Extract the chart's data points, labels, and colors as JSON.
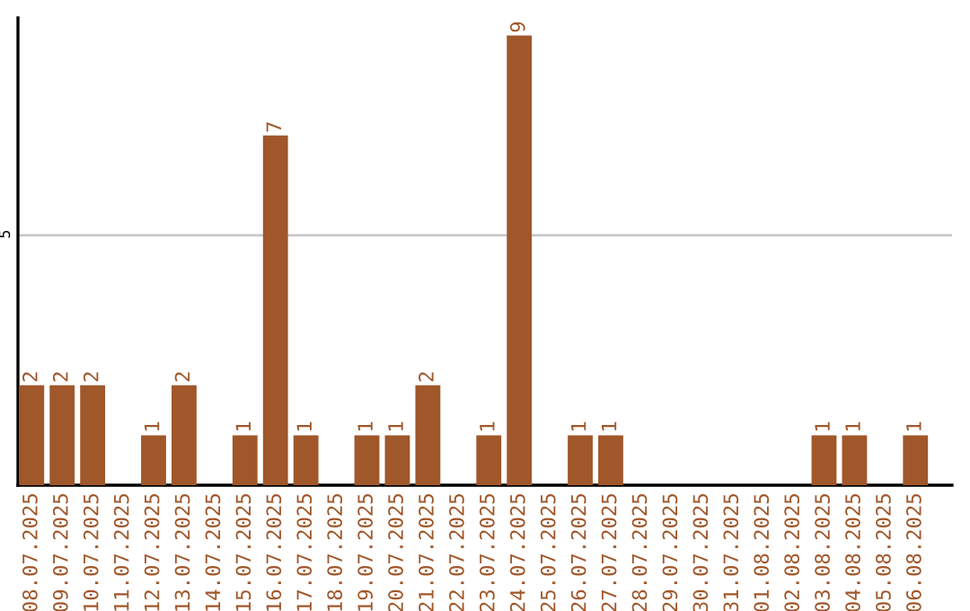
{
  "chart_data": {
    "type": "bar",
    "categories": [
      "08.07.2025",
      "09.07.2025",
      "10.07.2025",
      "11.07.2025",
      "12.07.2025",
      "13.07.2025",
      "14.07.2025",
      "15.07.2025",
      "16.07.2025",
      "17.07.2025",
      "18.07.2025",
      "19.07.2025",
      "20.07.2025",
      "21.07.2025",
      "22.07.2025",
      "23.07.2025",
      "24.07.2025",
      "25.07.2025",
      "26.07.2025",
      "27.07.2025",
      "28.07.2025",
      "29.07.2025",
      "30.07.2025",
      "31.07.2025",
      "01.08.2025",
      "02.08.2025",
      "03.08.2025",
      "04.08.2025",
      "05.08.2025",
      "06.08.2025"
    ],
    "values": [
      2,
      2,
      2,
      0,
      1,
      2,
      0,
      1,
      7,
      1,
      0,
      1,
      1,
      2,
      0,
      1,
      9,
      0,
      1,
      1,
      0,
      0,
      0,
      0,
      0,
      0,
      1,
      1,
      0,
      1
    ],
    "value_labels": [
      "2",
      "2",
      "2",
      null,
      "1",
      "2",
      null,
      "1",
      "7",
      "1",
      null,
      "1",
      "1",
      "2",
      null,
      "1",
      "9",
      null,
      "1",
      "1",
      null,
      null,
      null,
      null,
      null,
      null,
      "1",
      "1",
      null,
      "1"
    ],
    "color": "#a0572a",
    "ylim": [
      0,
      9.35
    ],
    "yticks": [
      5
    ],
    "grid": "y"
  }
}
